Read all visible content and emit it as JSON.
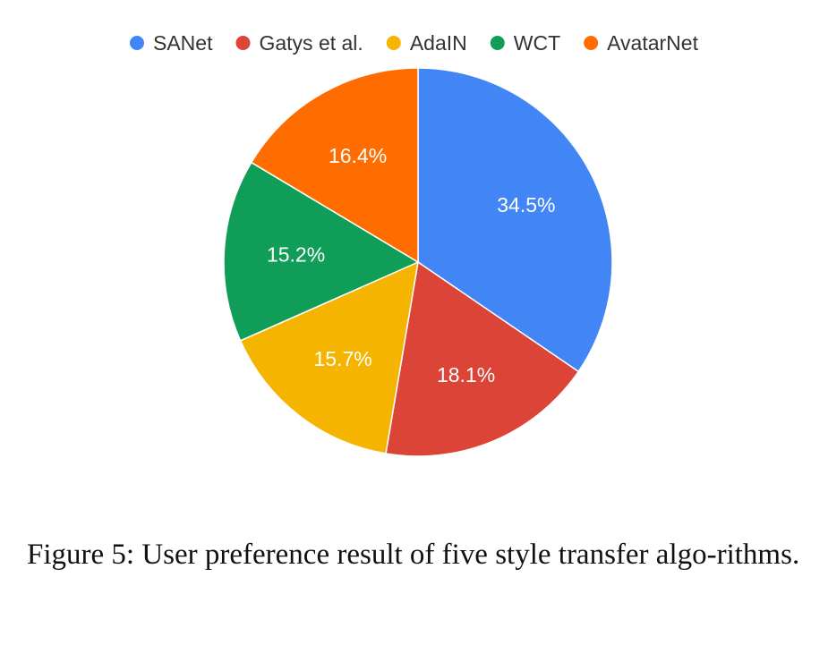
{
  "caption": "Figure 5: User preference result of five style transfer algo-rithms.",
  "chart_data": {
    "type": "pie",
    "title": "",
    "legend_position": "top",
    "start_angle_deg": 0,
    "direction": "clockwise",
    "slices": [
      {
        "name": "SANet",
        "value": 34.5,
        "label": "34.5%",
        "color": "#4285f4"
      },
      {
        "name": "Gatys et al.",
        "value": 18.1,
        "label": "18.1%",
        "color": "#db4437"
      },
      {
        "name": "AdaIN",
        "value": 15.7,
        "label": "15.7%",
        "color": "#f4b400"
      },
      {
        "name": "WCT",
        "value": 15.2,
        "label": "15.2%",
        "color": "#0f9d58"
      },
      {
        "name": "AvatarNet",
        "value": 16.4,
        "label": "16.4%",
        "color": "#ff6d00"
      }
    ]
  }
}
